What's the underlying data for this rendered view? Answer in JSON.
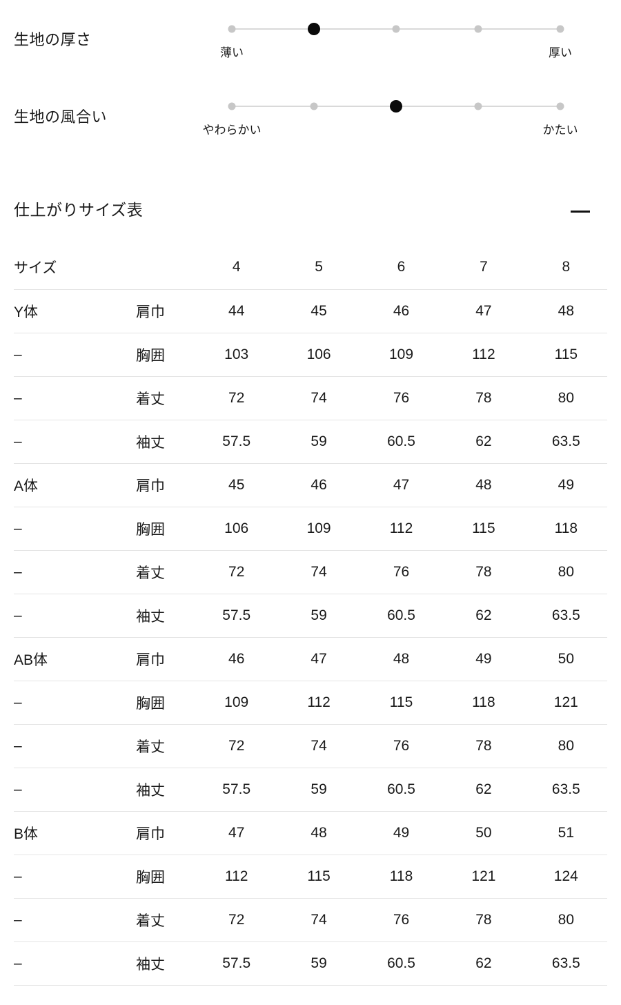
{
  "colors": {
    "text": "#1a1a1a",
    "separator_line": "#e4e4e4",
    "scale_track": "#d9d9d9",
    "scale_dot_inactive": "#c7c7c7",
    "scale_dot_active": "#0a0a0a"
  },
  "fabric_scales": [
    {
      "label": "生地の厚さ",
      "min_label": "薄い",
      "max_label": "厚い",
      "levels": 5,
      "value": 2
    },
    {
      "label": "生地の風合い",
      "min_label": "やわらかい",
      "max_label": "かたい",
      "levels": 5,
      "value": 3
    }
  ],
  "size_section": {
    "title": "仕上がりサイズ表",
    "collapse_icon": "minus",
    "columns": [
      "サイズ",
      "4",
      "5",
      "6",
      "7",
      "8"
    ],
    "rows": [
      {
        "body": "Y体",
        "measure": "肩巾",
        "values": [
          "44",
          "45",
          "46",
          "47",
          "48"
        ]
      },
      {
        "body": "–",
        "measure": "胸囲",
        "values": [
          "103",
          "106",
          "109",
          "112",
          "115"
        ]
      },
      {
        "body": "–",
        "measure": "着丈",
        "values": [
          "72",
          "74",
          "76",
          "78",
          "80"
        ]
      },
      {
        "body": "–",
        "measure": "袖丈",
        "values": [
          "57.5",
          "59",
          "60.5",
          "62",
          "63.5"
        ]
      },
      {
        "body": "A体",
        "measure": "肩巾",
        "values": [
          "45",
          "46",
          "47",
          "48",
          "49"
        ]
      },
      {
        "body": "–",
        "measure": "胸囲",
        "values": [
          "106",
          "109",
          "112",
          "115",
          "118"
        ]
      },
      {
        "body": "–",
        "measure": "着丈",
        "values": [
          "72",
          "74",
          "76",
          "78",
          "80"
        ]
      },
      {
        "body": "–",
        "measure": "袖丈",
        "values": [
          "57.5",
          "59",
          "60.5",
          "62",
          "63.5"
        ]
      },
      {
        "body": "AB体",
        "measure": "肩巾",
        "values": [
          "46",
          "47",
          "48",
          "49",
          "50"
        ]
      },
      {
        "body": "–",
        "measure": "胸囲",
        "values": [
          "109",
          "112",
          "115",
          "118",
          "121"
        ]
      },
      {
        "body": "–",
        "measure": "着丈",
        "values": [
          "72",
          "74",
          "76",
          "78",
          "80"
        ]
      },
      {
        "body": "–",
        "measure": "袖丈",
        "values": [
          "57.5",
          "59",
          "60.5",
          "62",
          "63.5"
        ]
      },
      {
        "body": "B体",
        "measure": "肩巾",
        "values": [
          "47",
          "48",
          "49",
          "50",
          "51"
        ]
      },
      {
        "body": "–",
        "measure": "胸囲",
        "values": [
          "112",
          "115",
          "118",
          "121",
          "124"
        ]
      },
      {
        "body": "–",
        "measure": "着丈",
        "values": [
          "72",
          "74",
          "76",
          "78",
          "80"
        ]
      },
      {
        "body": "–",
        "measure": "袖丈",
        "values": [
          "57.5",
          "59",
          "60.5",
          "62",
          "63.5"
        ]
      }
    ]
  }
}
